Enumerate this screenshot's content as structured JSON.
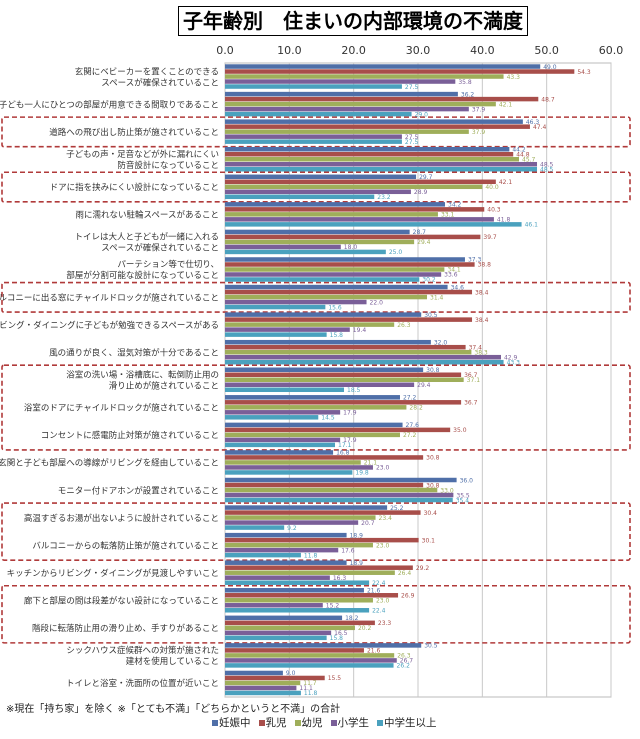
{
  "chart_data": {
    "type": "bar",
    "orientation": "horizontal",
    "title": "子年齢別　住まいの内部環境の不満度",
    "xlim": [
      0,
      60
    ],
    "xticks": [
      "0.0",
      "10.0",
      "20.0",
      "30.0",
      "40.0",
      "50.0",
      "60.0"
    ],
    "grid": true,
    "legend_position": "bottom",
    "note": "※現在「持ち家」を除く ※「とても不満」「どちらかというと不満」の合計",
    "series": [
      {
        "name": "妊娠中",
        "color": "#4f6fa8"
      },
      {
        "name": "乳児",
        "color": "#a84e4a"
      },
      {
        "name": "幼児",
        "color": "#9fae5a"
      },
      {
        "name": "小学生",
        "color": "#7a5f98"
      },
      {
        "name": "中学生以上",
        "color": "#4aa1be"
      }
    ],
    "categories": [
      {
        "label": [
          "玄関にベビーカーを置くことのできる",
          "スペースが確保されていること"
        ],
        "values": [
          49.0,
          54.3,
          43.3,
          35.8,
          27.5
        ]
      },
      {
        "label": [
          "子ども一人にひとつの部屋が用意できる間取りであること"
        ],
        "values": [
          36.2,
          48.7,
          42.1,
          37.9,
          29.0
        ]
      },
      {
        "label": [
          "道路への飛び出し防止策が施されていること"
        ],
        "values": [
          46.3,
          47.4,
          37.9,
          27.5,
          27.5
        ]
      },
      {
        "label": [
          "子どもの声・足音などが外に漏れにくい",
          "防音設計になっていること"
        ],
        "values": [
          44.2,
          44.8,
          45.7,
          48.5,
          48.5
        ]
      },
      {
        "label": [
          "ドアに指を挟みにくい設計になっていること"
        ],
        "values": [
          29.7,
          42.1,
          40.0,
          28.9,
          23.2
        ]
      },
      {
        "label": [
          "雨に濡れない駐輪スペースがあること"
        ],
        "values": [
          34.2,
          40.3,
          33.1,
          41.8,
          46.1
        ]
      },
      {
        "label": [
          "トイレは大人と子どもが一緒に入れる",
          "スペースが確保されていること"
        ],
        "values": [
          28.7,
          39.7,
          29.4,
          18.0,
          25.0
        ]
      },
      {
        "label": [
          "パーテション等で仕切り、",
          "部屋が分割可能な設計になっていること"
        ],
        "values": [
          37.3,
          38.8,
          34.1,
          33.6,
          30.2
        ]
      },
      {
        "label": [
          "バルコニーに出る窓にチャイルドロックが施されていること"
        ],
        "values": [
          34.6,
          38.4,
          31.4,
          22.0,
          15.6
        ]
      },
      {
        "label": [
          "リビング・ダイニングに子どもが勉強できるスペースがある"
        ],
        "values": [
          30.5,
          38.4,
          26.3,
          19.4,
          15.8
        ]
      },
      {
        "label": [
          "風の通りが良く、湿気対策が十分であること"
        ],
        "values": [
          32.0,
          37.4,
          38.3,
          42.9,
          43.3
        ]
      },
      {
        "label": [
          "浴室の洗い場・浴槽底に、転倒防止用の",
          "滑り止めが施されていること"
        ],
        "values": [
          30.8,
          36.7,
          37.1,
          29.4,
          18.5
        ]
      },
      {
        "label": [
          "浴室のドアにチャイルドロックが施されていること"
        ],
        "values": [
          27.2,
          36.7,
          28.2,
          17.9,
          14.5
        ]
      },
      {
        "label": [
          "コンセントに感電防止対策が施されていること"
        ],
        "values": [
          27.6,
          35.0,
          27.2,
          17.9,
          17.1
        ]
      },
      {
        "label": [
          "玄関と子ども部屋への導線がリビングを経由していること"
        ],
        "values": [
          16.8,
          30.8,
          21.1,
          23.0,
          19.8
        ]
      },
      {
        "label": [
          "モニター付ドアホンが設置されていること"
        ],
        "values": [
          36.0,
          30.8,
          33.0,
          35.5,
          35.4
        ]
      },
      {
        "label": [
          "高温すぎるお湯が出ないように設計されていること"
        ],
        "values": [
          25.2,
          30.4,
          23.4,
          20.7,
          9.2
        ]
      },
      {
        "label": [
          "バルコニーからの転落防止策が施されていること"
        ],
        "values": [
          18.9,
          30.1,
          23.0,
          17.6,
          11.8
        ]
      },
      {
        "label": [
          "キッチンからリビング・ダイニングが見渡しやすいこと"
        ],
        "values": [
          18.9,
          29.2,
          26.4,
          16.3,
          22.4
        ]
      },
      {
        "label": [
          "廊下と部屋の間は段差がない設計になっていること"
        ],
        "values": [
          21.6,
          26.9,
          23.0,
          15.2,
          22.4
        ]
      },
      {
        "label": [
          "階段に転落防止用の滑り止め、手すりがあること"
        ],
        "values": [
          18.2,
          23.3,
          20.2,
          16.5,
          15.8
        ]
      },
      {
        "label": [
          "シックハウス症候群への対策が施された",
          "建材を使用していること"
        ],
        "values": [
          30.5,
          21.6,
          26.3,
          26.7,
          26.2
        ]
      },
      {
        "label": [
          "トイレと浴室・洗面所の位置が近いこと"
        ],
        "values": [
          9.0,
          15.5,
          11.7,
          11.1,
          11.8
        ]
      }
    ],
    "highlight_groups": [
      [
        2
      ],
      [
        4
      ],
      [
        8
      ],
      [
        11,
        12,
        13
      ],
      [
        16,
        17
      ],
      [
        19,
        20
      ]
    ]
  }
}
